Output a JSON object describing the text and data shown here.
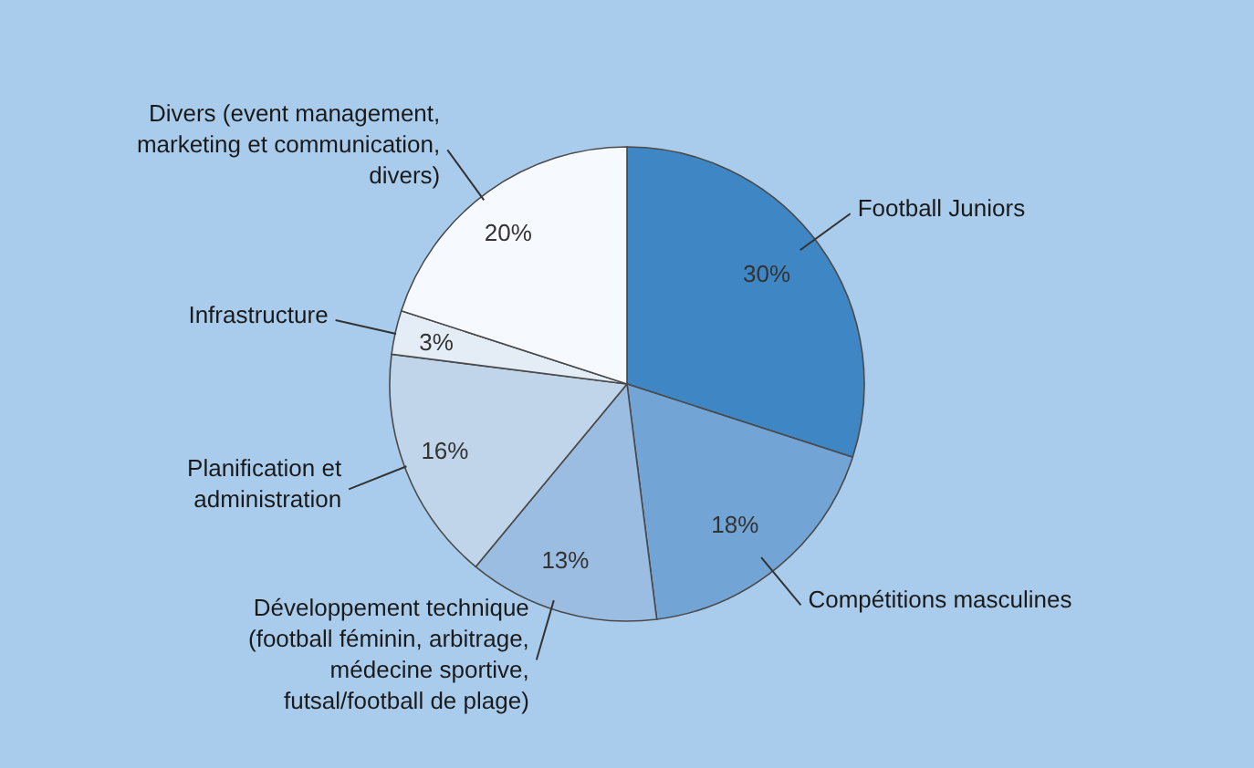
{
  "chart_data": {
    "type": "pie",
    "categories": [
      "Football Juniors",
      "Compétitions masculines",
      "Développement technique (football féminin, arbitrage, médecine sportive, futsal/football de plage)",
      "Planification et administration",
      "Infrastructure",
      "Divers (event management, marketing et communication, divers)"
    ],
    "values": [
      30,
      18,
      13,
      16,
      3,
      20
    ],
    "colors": [
      "#3f86c4",
      "#72a5d6",
      "#9bbde2",
      "#c0d4ea",
      "#e4edf6",
      "#f6f9fd"
    ],
    "value_labels": [
      "30%",
      "18%",
      "13%",
      "16%",
      "3%",
      "20%"
    ]
  }
}
